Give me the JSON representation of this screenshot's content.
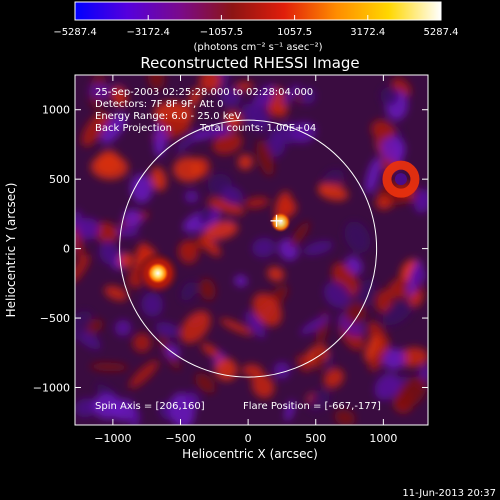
{
  "footer_timestamp": "11-Jun-2013 20:37",
  "colorbar": {
    "tick_labels": [
      "-5287.4",
      "-3172.4",
      "-1057.5",
      "1057.5",
      "3172.4",
      "5287.4"
    ],
    "range": [
      -5287.4,
      5287.4
    ],
    "unit_label": "(photons cm⁻² s⁻¹ asec⁻²)",
    "colormap": [
      "#0000ff",
      "#5500dd",
      "#7a0a8c",
      "#8c1414",
      "#e01e0a",
      "#ff8c00",
      "#ffd700",
      "#ffffff"
    ]
  },
  "chart_data": {
    "type": "heatmap",
    "title": "Reconstructed RHESSI Image",
    "xlabel": "Heliocentric X (arcsec)",
    "ylabel": "Heliocentric Y (arcsec)",
    "xlim": [
      -1280,
      1330
    ],
    "ylim": [
      -1270,
      1250
    ],
    "xticks": [
      -1000,
      -500,
      0,
      500,
      1000
    ],
    "xtick_labels": [
      "−1000",
      "−500",
      "0",
      "500",
      "1000"
    ],
    "yticks": [
      -1000,
      -500,
      0,
      500,
      1000
    ],
    "ytick_labels": [
      "−1000",
      "−500",
      "0",
      "500",
      "1000"
    ],
    "solar_limb_radius": 950,
    "annotations": [
      "25-Sep-2003 02:25:28.000 to 02:28:04.000",
      "Detectors: 7F 8F 9F, Att 0",
      "Energy Range: 6.0 - 25.0 keV",
      "Back Projection",
      "Total counts: 1.00E+04"
    ],
    "spin_axis_label": "Spin Axis = [206,160]",
    "flare_position_label": "Flare Position = [-667,-177]",
    "spin_axis": [
      206,
      160
    ],
    "flare_position": [
      -667,
      -177
    ],
    "marker_position": [
      210,
      200
    ],
    "bright_sources": [
      {
        "x": -667,
        "y": -177,
        "level": "peak"
      },
      {
        "x": 240,
        "y": 190,
        "level": "high"
      },
      {
        "x": 1130,
        "y": 500,
        "level": "ring"
      }
    ]
  }
}
